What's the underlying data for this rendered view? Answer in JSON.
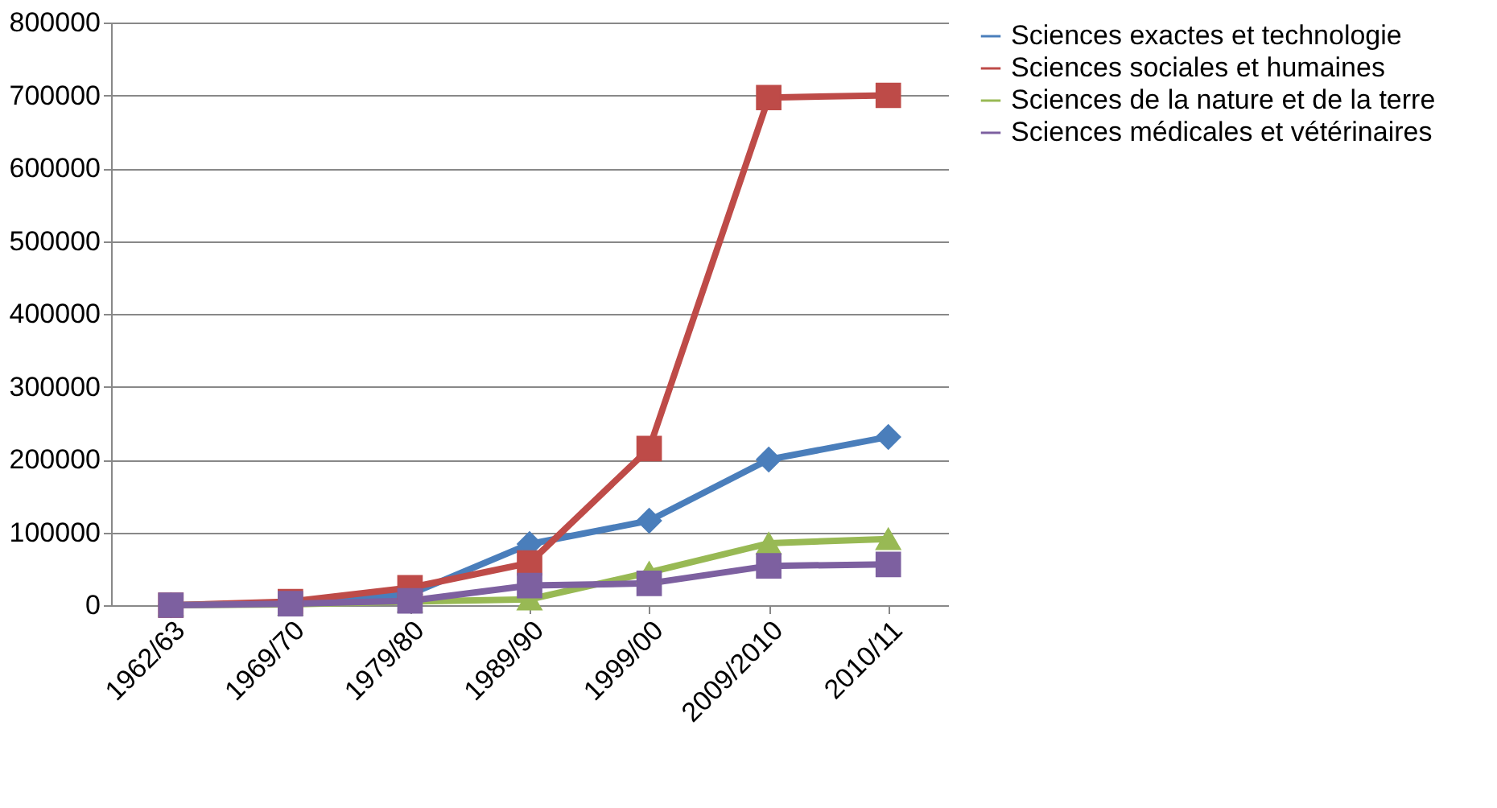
{
  "chart_data": {
    "type": "line",
    "categories": [
      "1962/63",
      "1969/70",
      "1979/80",
      "1989/90",
      "1999/00",
      "2009/2010",
      "2010/11"
    ],
    "series": [
      {
        "name": "Sciences exactes et technologie",
        "color": "#4a7ebb",
        "marker": "diamond",
        "values": [
          0,
          3000,
          15000,
          84000,
          116000,
          200000,
          231000
        ]
      },
      {
        "name": "Sciences sociales et humaines",
        "color": "#be4b48",
        "marker": "square",
        "values": [
          0,
          5000,
          24000,
          58000,
          215000,
          697000,
          700000
        ]
      },
      {
        "name": "Sciences de la nature et de la terre",
        "color": "#98b954",
        "marker": "triangle",
        "values": [
          0,
          1000,
          5000,
          8000,
          45000,
          85000,
          91000
        ]
      },
      {
        "name": "Sciences médicales et vétérinaires",
        "color": "#7d60a0",
        "marker": "square",
        "values": [
          0,
          2000,
          6000,
          27000,
          30000,
          54000,
          56000
        ]
      }
    ],
    "ylim": [
      0,
      800000
    ],
    "yticks": [
      0,
      100000,
      200000,
      300000,
      400000,
      500000,
      600000,
      700000,
      800000
    ],
    "grid": "y",
    "legend": "right"
  }
}
